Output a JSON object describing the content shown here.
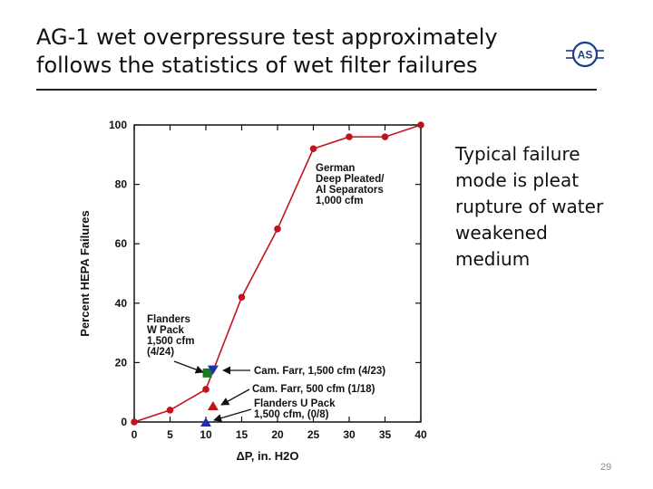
{
  "slide": {
    "title_line1": "AG-1 wet overpressure test approximately",
    "title_line2": "follows the statistics of wet filter failures",
    "side_text": [
      "Typical failure",
      "mode is pleat",
      "rupture of water",
      "weakened",
      "medium"
    ],
    "page_number": "29",
    "logo_text": "AS"
  },
  "colors": {
    "series": "#c0141c",
    "green": "#1a7a2a",
    "blue": "#1e2fb0",
    "axis": "#111111"
  },
  "chart_data": {
    "type": "line",
    "xlabel": "ΔP, in. H2O",
    "ylabel": "Percent HEPA Failures",
    "xlim": [
      0,
      40
    ],
    "ylim": [
      0,
      100
    ],
    "xticks": [
      0,
      5,
      10,
      15,
      20,
      25,
      30,
      35,
      40
    ],
    "yticks": [
      0,
      20,
      40,
      60,
      80,
      100
    ],
    "series": [
      {
        "name": "German Deep Pleated/Al Separators 1,000 cfm",
        "x": [
          0,
          5,
          10,
          15,
          20,
          25,
          30,
          35,
          40
        ],
        "values": [
          0,
          4,
          11,
          42,
          65,
          92,
          96,
          96,
          100
        ]
      }
    ],
    "markers": [
      {
        "name": "Flanders W Pack 1,500 cfm (4/24)",
        "shape": "square",
        "x": 10.2,
        "y": 16.5,
        "color": "#1a7a2a"
      },
      {
        "name": "Cam. Farr, 1,500 cfm (4/23)",
        "shape": "triangle-down",
        "x": 11,
        "y": 17.5,
        "color": "#1e2fb0"
      },
      {
        "name": "Cam. Farr, 500 cfm (1/18)",
        "shape": "triangle-up",
        "x": 11,
        "y": 5.5,
        "color": "#c0141c"
      },
      {
        "name": "Flanders U Pack 1,500 cfm, (0/8)",
        "shape": "triangle-up",
        "x": 10,
        "y": 0,
        "color": "#1e2fb0"
      }
    ],
    "annotations": [
      {
        "lines": [
          "German",
          "Deep Pleated/",
          "Al Separators",
          "1,000 cfm"
        ]
      },
      {
        "lines": [
          "Flanders",
          "W Pack",
          "1,500 cfm",
          "(4/24)"
        ]
      },
      {
        "lines": [
          "Cam. Farr, 1,500 cfm (4/23)"
        ]
      },
      {
        "lines": [
          "Cam. Farr, 500 cfm (1/18)"
        ]
      },
      {
        "lines": [
          "Flanders U Pack",
          "1,500 cfm, (0/8)"
        ]
      }
    ]
  }
}
